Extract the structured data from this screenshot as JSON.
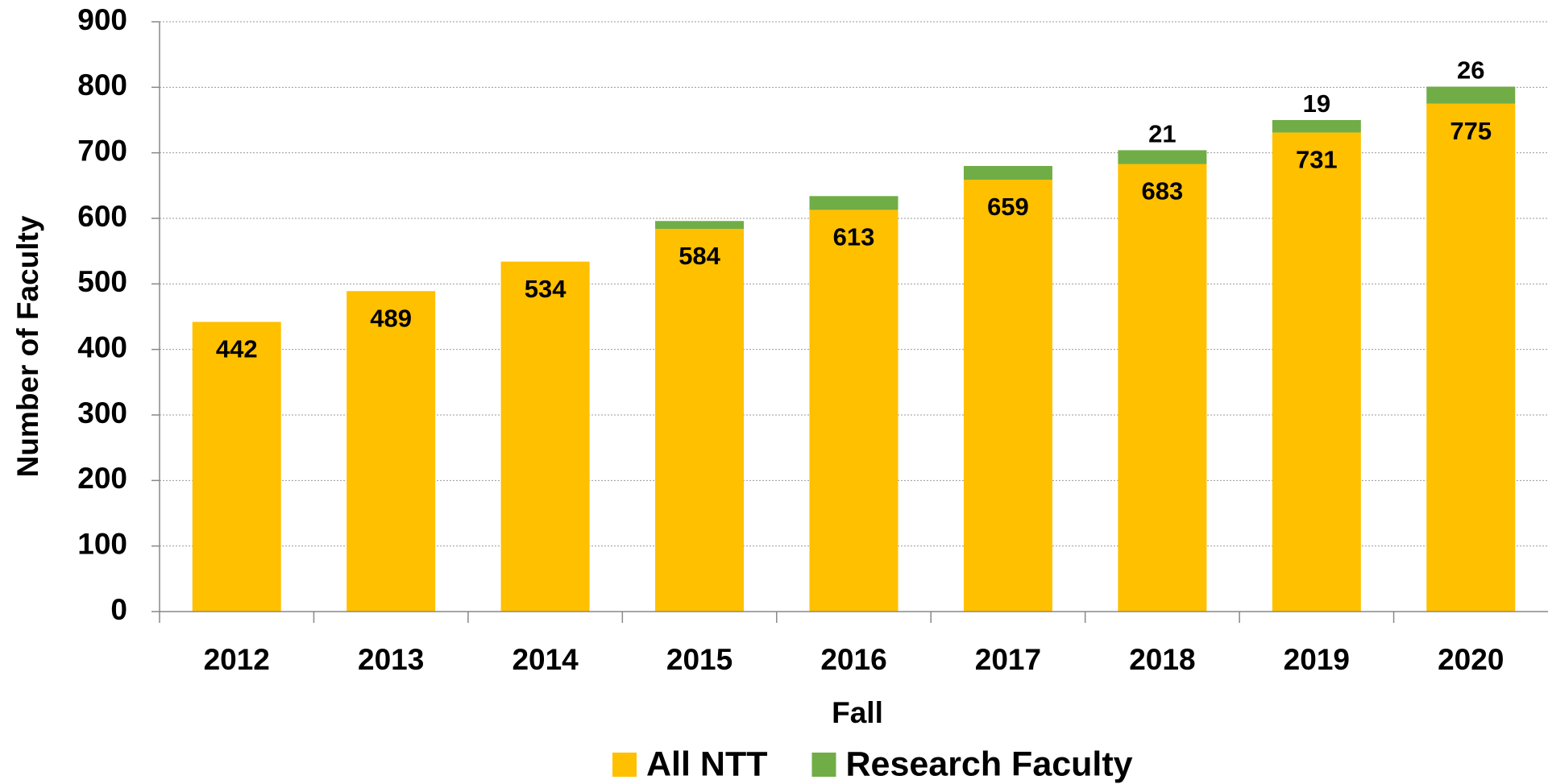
{
  "chart_data": {
    "type": "stacked_bar",
    "xlabel": "Fall",
    "ylabel": "Number of Faculty",
    "categories": [
      "2012",
      "2013",
      "2014",
      "2015",
      "2016",
      "2017",
      "2018",
      "2019",
      "2020"
    ],
    "series": [
      {
        "name": "All NTT",
        "color": "#FFC000",
        "values": [
          442,
          489,
          534,
          584,
          613,
          659,
          683,
          731,
          775
        ],
        "value_labels": [
          "442",
          "489",
          "534",
          "584",
          "613",
          "659",
          "683",
          "731",
          "775"
        ]
      },
      {
        "name": "Research Faculty",
        "color": "#70AD47",
        "values": [
          0,
          0,
          0,
          12,
          21,
          21,
          21,
          19,
          26
        ],
        "value_labels": [
          null,
          null,
          null,
          null,
          null,
          null,
          "21",
          "19",
          "26"
        ]
      }
    ],
    "ylim": [
      0,
      900
    ],
    "yticks": [
      0,
      100,
      200,
      300,
      400,
      500,
      600,
      700,
      800,
      900
    ],
    "grid": true,
    "legend": "bottom"
  }
}
